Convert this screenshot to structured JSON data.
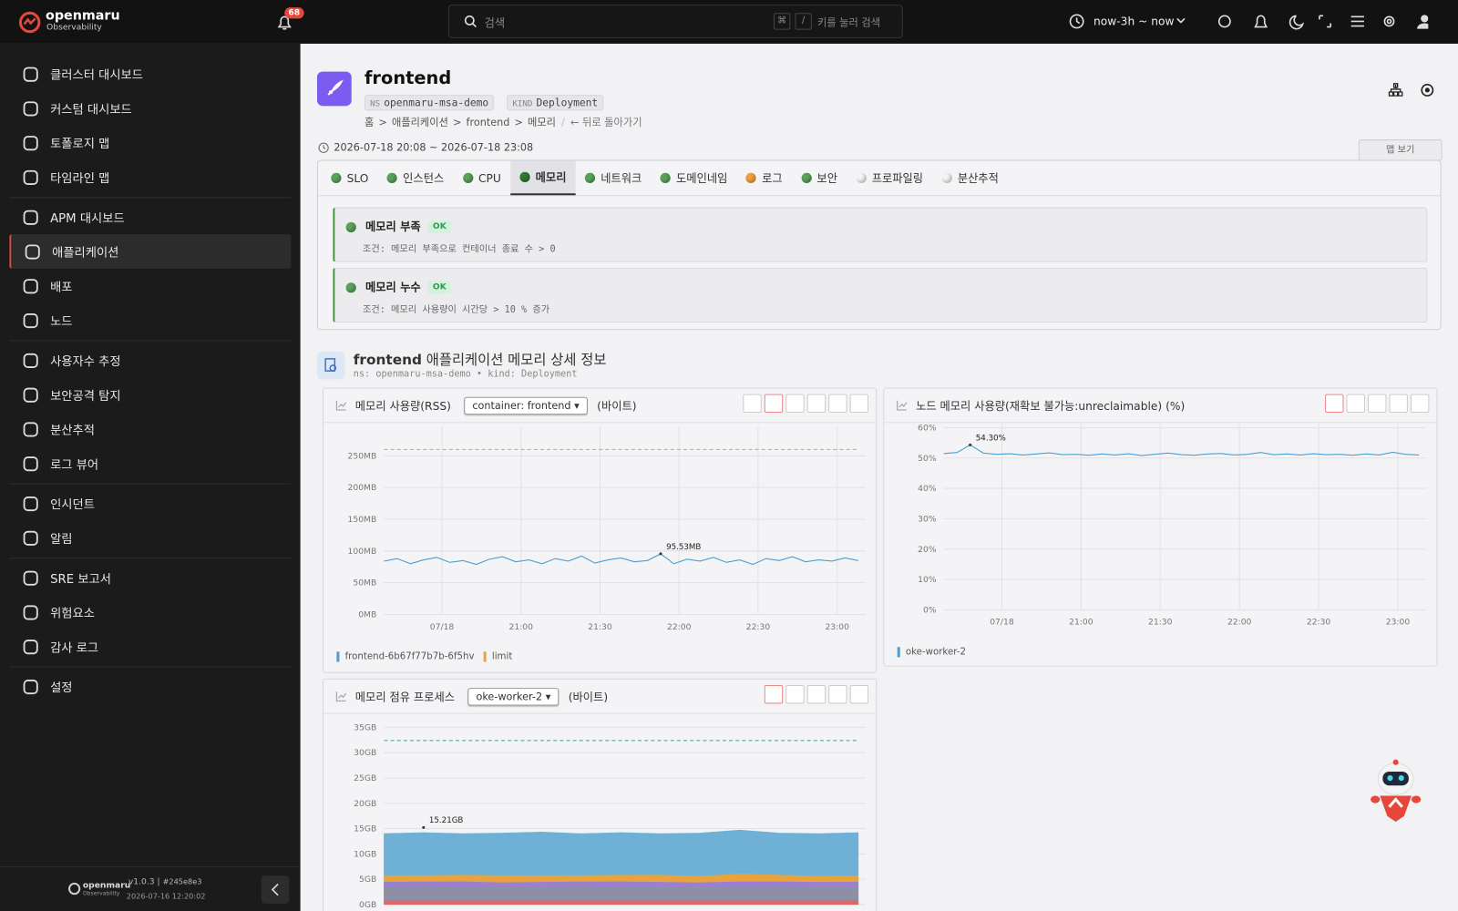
{
  "topbar": {
    "brand": "openmaru",
    "brand_sub": "Observability",
    "notifications": 68,
    "search_placeholder": "검색",
    "search_keys": [
      "⌘",
      "/"
    ],
    "search_hint": "키를 눌러 검색",
    "time_range": "now-3h ~ now"
  },
  "sidebar": {
    "groups": [
      [
        "클러스터 대시보드",
        "커스텀 대시보드",
        "토폴로지 맵",
        "타임라인 맵"
      ],
      [
        "APM 대시보드",
        "애플리케이션",
        "배포",
        "노드"
      ],
      [
        "사용자수 추정",
        "보안공격 탐지",
        "분산추적",
        "로그 뷰어"
      ],
      [
        "인시던트",
        "알림"
      ],
      [
        "SRE 보고서",
        "위험요소",
        "감사 로그"
      ],
      [
        "설정"
      ]
    ],
    "active": "애플리케이션",
    "version": "v1.0.3",
    "build": "#245e8e3",
    "build_date": "2026-07-16 12:20:02"
  },
  "header": {
    "title": "frontend",
    "ns_label": "NS",
    "ns": "openmaru-msa-demo",
    "kind_label": "KIND",
    "kind": "Deployment",
    "breadcrumb": [
      "홈",
      "애플리케이션",
      "frontend",
      "메모리"
    ],
    "back": "← 뒤로 돌아가기",
    "period": "2026-07-18 20:08 ~ 2026-07-18 23:08",
    "map_button": "맵 보기"
  },
  "tabs": {
    "active": "메모리",
    "items": [
      {
        "label": "SLO",
        "status": "green"
      },
      {
        "label": "인스턴스",
        "status": "green"
      },
      {
        "label": "CPU",
        "status": "green"
      },
      {
        "label": "메모리",
        "status": "green"
      },
      {
        "label": "네트워크",
        "status": "green"
      },
      {
        "label": "도메인네임",
        "status": "green"
      },
      {
        "label": "로그",
        "status": "orange"
      },
      {
        "label": "보안",
        "status": "green"
      },
      {
        "label": "프로파일링",
        "status": "none"
      },
      {
        "label": "분산추적",
        "status": "none"
      }
    ]
  },
  "checks": [
    {
      "title": "메모리 부족",
      "status": "OK",
      "condition": "조건: 메모리 부족으로 컨테이너 종료 수 > 0"
    },
    {
      "title": "메모리 누수",
      "status": "OK",
      "condition": "조건: 메모리 사용량이 시간당 > 10 % 증가"
    }
  ],
  "section": {
    "title_bold": "frontend",
    "title": "애플리케이션 메모리 상세 정보",
    "sub": "ns: openmaru-msa-demo • kind: Deployment"
  },
  "charts": [
    {
      "type": "line",
      "title": "메모리 사용량(RSS)",
      "selector": "container: frontend",
      "unit": "(바이트)",
      "xlim": [
        "2026-07-18 20:08",
        "2026-07-18 23:08"
      ],
      "xticks": [
        {
          "value": "2026-07-18 20:30",
          "label": "07/18"
        },
        {
          "value": "2026-07-18 21:00",
          "label": "21:00"
        },
        {
          "value": "2026-07-18 21:30",
          "label": "21:30"
        },
        {
          "value": "2026-07-18 22:00",
          "label": "22:00"
        },
        {
          "value": "2026-07-18 22:30",
          "label": "22:30"
        },
        {
          "value": "2026-07-18 23:00",
          "label": "23:00"
        }
      ],
      "ylim": [
        0,
        290
      ],
      "yticks": [
        {
          "value": 0,
          "label": "0MB"
        },
        {
          "value": 50,
          "label": "50MB"
        },
        {
          "value": 100,
          "label": "100MB"
        },
        {
          "value": 150,
          "label": "150MB"
        },
        {
          "value": 200,
          "label": "200MB"
        },
        {
          "value": 250,
          "label": "250MB"
        }
      ],
      "grid": true,
      "series": [
        {
          "name": "frontend-6b67f77b7b-6f5hv",
          "color": "#4a9fd4",
          "values": [
            84,
            88,
            80,
            86,
            90,
            82,
            85,
            79,
            87,
            91,
            83,
            86,
            80,
            88,
            84,
            92,
            81,
            86,
            89,
            83,
            85,
            95.53,
            80,
            87,
            84,
            90,
            82,
            86,
            79,
            88,
            85,
            91,
            83,
            86,
            84,
            89,
            85
          ]
        }
      ],
      "thresholds": [
        {
          "name": "limit",
          "value": 260,
          "color": "#e8a33d"
        }
      ],
      "annotations": [
        {
          "label": "95.53MB",
          "value": 95.53,
          "x": "2026-07-18 21:53"
        }
      ]
    },
    {
      "type": "line",
      "title": "노드 메모리 사용량(재확보 불가능:unreclaimable) (%)",
      "xlim": [
        "2026-07-18 20:08",
        "2026-07-18 23:08"
      ],
      "xticks": [
        {
          "value": "2026-07-18 20:30",
          "label": "07/18"
        },
        {
          "value": "2026-07-18 21:00",
          "label": "21:00"
        },
        {
          "value": "2026-07-18 21:30",
          "label": "21:30"
        },
        {
          "value": "2026-07-18 22:00",
          "label": "22:00"
        },
        {
          "value": "2026-07-18 22:30",
          "label": "22:30"
        },
        {
          "value": "2026-07-18 23:00",
          "label": "23:00"
        }
      ],
      "ylim": [
        0,
        60
      ],
      "yticks": [
        {
          "value": 0,
          "label": "0%"
        },
        {
          "value": 10,
          "label": "10%"
        },
        {
          "value": 20,
          "label": "20%"
        },
        {
          "value": 30,
          "label": "30%"
        },
        {
          "value": 40,
          "label": "40%"
        },
        {
          "value": 50,
          "label": "50%"
        },
        {
          "value": 60,
          "label": "60%"
        }
      ],
      "grid": true,
      "series": [
        {
          "name": "oke-worker-2",
          "color": "#4a9fd4",
          "values": [
            51.5,
            51.8,
            54.3,
            51.6,
            51.2,
            51.4,
            51.0,
            51.3,
            51.7,
            51.1,
            51.2,
            50.9,
            51.3,
            51.0,
            51.4,
            50.8,
            51.2,
            51.6,
            51.1,
            50.9,
            51.3,
            51.5,
            51.0,
            51.2,
            51.8,
            51.1,
            51.3,
            51.0,
            51.4,
            51.1,
            51.2,
            50.9,
            51.3,
            51.0,
            51.9,
            51.2,
            51.0
          ]
        }
      ],
      "annotations": [
        {
          "label": "54.30%",
          "value": 54.3,
          "x": "2026-07-18 20:18"
        }
      ]
    },
    {
      "type": "area",
      "stacked": true,
      "title": "메모리 점유 프로세스",
      "selector": "oke-worker-2",
      "unit": "(바이트)",
      "xlim": [
        "2026-07-18 20:08",
        "2026-07-18 23:08"
      ],
      "ylim": [
        0,
        36
      ],
      "yticks": [
        {
          "value": 0,
          "label": "0GB"
        },
        {
          "value": 5,
          "label": "5GB"
        },
        {
          "value": 10,
          "label": "10GB"
        },
        {
          "value": 15,
          "label": "15GB"
        },
        {
          "value": 20,
          "label": "20GB"
        },
        {
          "value": 25,
          "label": "25GB"
        },
        {
          "value": 30,
          "label": "30GB"
        },
        {
          "value": 35,
          "label": "35GB"
        }
      ],
      "grid": true,
      "series": [
        {
          "color": "#e06666",
          "values": [
            0.8,
            0.8,
            0.8,
            0.8,
            0.8,
            0.8,
            0.8,
            0.8,
            0.8,
            0.8,
            0.8,
            0.8,
            0.8
          ]
        },
        {
          "color": "#8d8fa6",
          "values": [
            2.8,
            2.9,
            2.8,
            2.7,
            2.8,
            2.9,
            2.8,
            2.8,
            2.7,
            2.8,
            2.9,
            2.8,
            2.8
          ]
        },
        {
          "color": "#9b7fd1",
          "values": [
            0.9,
            0.9,
            1.0,
            0.9,
            0.9,
            0.9,
            1.0,
            0.9,
            0.9,
            1.0,
            0.9,
            0.9,
            0.9
          ]
        },
        {
          "color": "#e8a33d",
          "values": [
            1.3,
            1.2,
            1.3,
            1.4,
            1.3,
            1.2,
            1.3,
            1.4,
            1.3,
            1.5,
            1.3,
            1.2,
            1.3
          ]
        },
        {
          "color": "#6fb1d6",
          "values": [
            8.2,
            8.4,
            8.1,
            8.3,
            8.5,
            8.2,
            8.3,
            8.1,
            8.4,
            8.6,
            8.2,
            8.3,
            8.4
          ]
        }
      ],
      "thresholds": [
        {
          "value": 32.4,
          "color": "#3aa58a"
        }
      ],
      "annotations": [
        {
          "label": "15.21GB",
          "value": 15.21,
          "x": "2026-07-18 20:23"
        }
      ]
    }
  ]
}
